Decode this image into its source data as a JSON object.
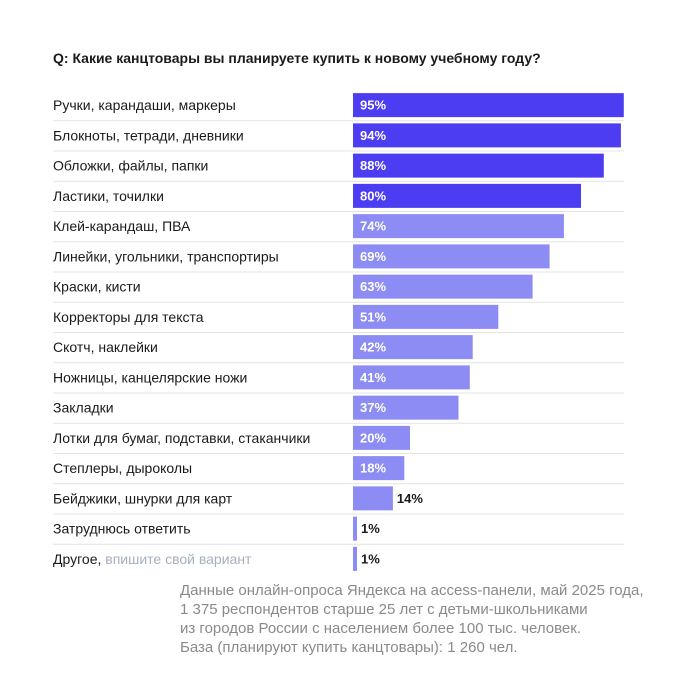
{
  "question": "Q: Какие  канцтовары вы планируете купить к новому учебному году?",
  "chart_data": {
    "type": "bar",
    "orientation": "horizontal",
    "categories": [
      "Ручки, карандаши, маркеры",
      "Блокноты, тетради, дневники",
      "Обложки, файлы, папки",
      "Ластики, точилки",
      "Клей-карандаш, ПВА",
      "Линейки, угольники, транспортиры",
      "Краски, кисти",
      "Корректоры для текста",
      "Скотч, наклейки",
      "Ножницы, канцелярские ножи",
      "Закладки",
      "Лотки для бумаг, подставки, стаканчики",
      "Степлеры, дыроколы",
      "Бейджики, шнурки для карт",
      "Затруднюсь ответить",
      "Другое,"
    ],
    "category_hints": {
      "15": " впишите свой вариант"
    },
    "values": [
      95,
      94,
      88,
      80,
      74,
      69,
      63,
      51,
      42,
      41,
      37,
      20,
      18,
      14,
      1,
      1
    ],
    "value_labels": [
      "95%",
      "94%",
      "88%",
      "80%",
      "74%",
      "69%",
      "63%",
      "51%",
      "42%",
      "41%",
      "37%",
      "20%",
      "18%",
      "14%",
      "1%",
      "1%"
    ],
    "highlight_count": 4,
    "xlim": [
      0,
      100
    ],
    "colors": {
      "highlight": "#4d3df2",
      "normal": "#8c8cf4",
      "hint_text": "#a7afbd"
    },
    "grid": false,
    "legend": "none"
  },
  "footnote": [
    "Данные онлайн-опроса Яндекса на access-панели, май 2025 года,",
    "1 375 респондентов старше 25 лет с детьми-школьниками",
    "из городов России с населением более 100 тыс. человек.",
    "База (планируют купить канцтовары): 1 260 чел."
  ]
}
